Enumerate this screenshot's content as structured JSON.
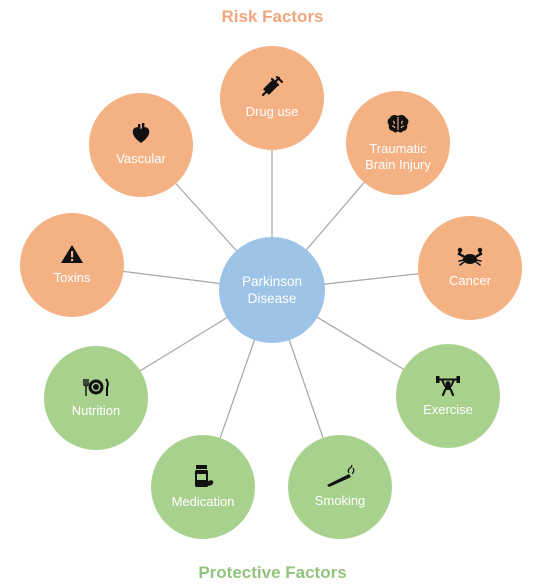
{
  "risk_heading": "Risk Factors",
  "protective_heading": "Protective Factors",
  "center": {
    "line1": "Parkinson",
    "line2": "Disease"
  },
  "risk_factors": [
    {
      "label": "Drug use",
      "icon": "syringe-icon"
    },
    {
      "label_line1": "Traumatic",
      "label_line2": "Brain Injury",
      "icon": "brain-icon"
    },
    {
      "label": "Cancer",
      "icon": "crab-icon"
    },
    {
      "label": "Toxins",
      "icon": "warning-icon"
    },
    {
      "label": "Vascular",
      "icon": "heart-icon"
    }
  ],
  "protective_factors": [
    {
      "label": "Nutrition",
      "icon": "plate-cutlery-icon"
    },
    {
      "label": "Medication",
      "icon": "pill-bottle-icon"
    },
    {
      "label": "Smoking",
      "icon": "cigarette-icon"
    },
    {
      "label": "Exercise",
      "icon": "weightlifter-icon"
    }
  ],
  "colors": {
    "risk": "#f4b183",
    "protective": "#a9d18e",
    "center": "#9dc3e6",
    "connector": "#a6a6a6"
  }
}
